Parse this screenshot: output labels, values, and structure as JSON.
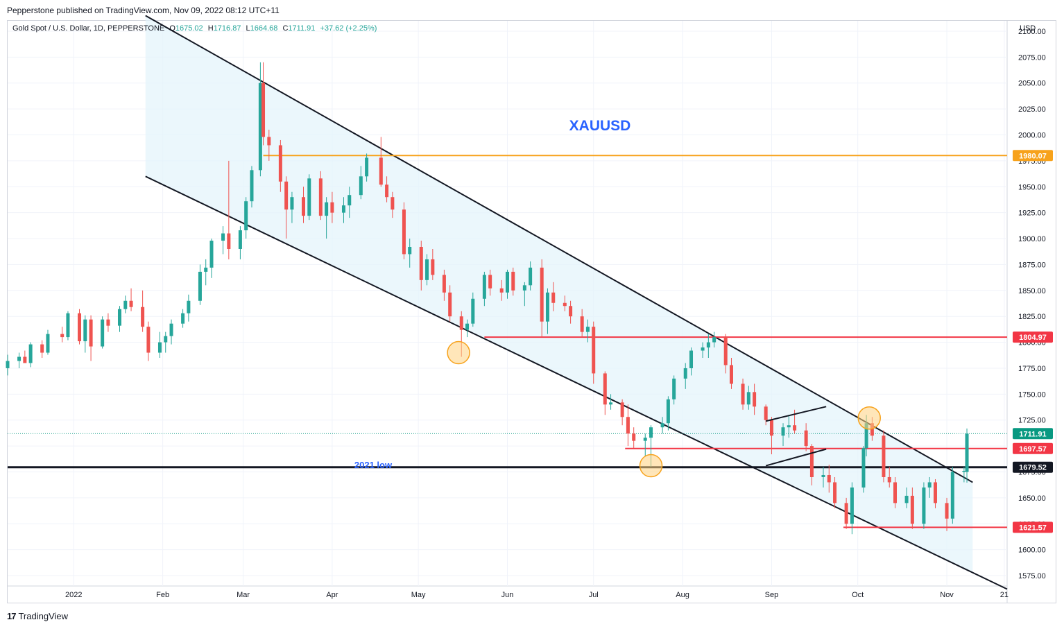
{
  "header": {
    "publisher_note": "Pepperstone published on TradingView.com, Nov 09, 2022 08:12 UTC+11"
  },
  "legend": {
    "symbol": "Gold Spot / U.S. Dollar, 1D, PEPPERSTONE",
    "open_label": "O",
    "open": "1675.02",
    "high_label": "H",
    "high": "1716.87",
    "low_label": "L",
    "low": "1664.68",
    "close_label": "C",
    "close": "1711.91",
    "change": "+37.62 (+2.25%)"
  },
  "currency": "USD",
  "footer": {
    "logo_mark": "17",
    "brand": "TradingView"
  },
  "colors": {
    "up": "#26a69a",
    "down": "#ef5350",
    "channel_fill": "#e3f4fb",
    "resistance_orange": "#f7a21b",
    "title_blue": "#2962ff",
    "badge_red": "#f23645",
    "badge_green": "#089981",
    "badge_black": "#131722"
  },
  "chart_data": {
    "type": "candlestick",
    "title": "XAUUSD",
    "ylim": [
      1565,
      2110
    ],
    "y_ticks": [
      1575,
      1600,
      1625,
      1650,
      1675,
      1700,
      1725,
      1750,
      1775,
      1800,
      1825,
      1850,
      1875,
      1900,
      1925,
      1950,
      1975,
      2000,
      2025,
      2050,
      2075,
      2100
    ],
    "x_range": [
      "2021-12-09",
      "2022-11-22"
    ],
    "x_ticks": [
      {
        "label": "2022",
        "date": "2022-01-01"
      },
      {
        "label": "Feb",
        "date": "2022-02-01"
      },
      {
        "label": "Mar",
        "date": "2022-03-01"
      },
      {
        "label": "Apr",
        "date": "2022-04-01"
      },
      {
        "label": "May",
        "date": "2022-05-01"
      },
      {
        "label": "Jun",
        "date": "2022-06-01"
      },
      {
        "label": "Jul",
        "date": "2022-07-01"
      },
      {
        "label": "Aug",
        "date": "2022-08-01"
      },
      {
        "label": "Sep",
        "date": "2022-09-01"
      },
      {
        "label": "Oct",
        "date": "2022-10-01"
      },
      {
        "label": "Nov",
        "date": "2022-11-01"
      },
      {
        "label": "21",
        "date": "2022-11-21"
      }
    ],
    "candles_approx": [
      [
        "2021-12-09",
        1775,
        1788,
        1768,
        1782
      ],
      [
        "2021-12-13",
        1782,
        1790,
        1775,
        1786
      ],
      [
        "2021-12-15",
        1786,
        1792,
        1780,
        1780
      ],
      [
        "2021-12-17",
        1780,
        1800,
        1776,
        1798
      ],
      [
        "2021-12-21",
        1798,
        1802,
        1785,
        1790
      ],
      [
        "2021-12-23",
        1790,
        1812,
        1788,
        1808
      ],
      [
        "2021-12-28",
        1808,
        1815,
        1800,
        1805
      ],
      [
        "2021-12-30",
        1805,
        1830,
        1802,
        1828
      ],
      [
        "2022-01-03",
        1828,
        1832,
        1798,
        1801
      ],
      [
        "2022-01-05",
        1801,
        1826,
        1790,
        1822
      ],
      [
        "2022-01-07",
        1822,
        1826,
        1782,
        1796
      ],
      [
        "2022-01-11",
        1796,
        1825,
        1794,
        1822
      ],
      [
        "2022-01-13",
        1822,
        1828,
        1810,
        1816
      ],
      [
        "2022-01-17",
        1816,
        1835,
        1810,
        1832
      ],
      [
        "2022-01-19",
        1832,
        1845,
        1828,
        1840
      ],
      [
        "2022-01-21",
        1840,
        1852,
        1830,
        1834
      ],
      [
        "2022-01-25",
        1834,
        1850,
        1810,
        1815
      ],
      [
        "2022-01-27",
        1815,
        1820,
        1782,
        1790
      ],
      [
        "2022-01-31",
        1790,
        1810,
        1785,
        1800
      ],
      [
        "2022-02-02",
        1800,
        1810,
        1790,
        1806
      ],
      [
        "2022-02-04",
        1806,
        1822,
        1798,
        1818
      ],
      [
        "2022-02-08",
        1818,
        1832,
        1814,
        1828
      ],
      [
        "2022-02-10",
        1828,
        1846,
        1820,
        1840
      ],
      [
        "2022-02-14",
        1840,
        1875,
        1836,
        1868
      ],
      [
        "2022-02-16",
        1868,
        1880,
        1855,
        1872
      ],
      [
        "2022-02-18",
        1872,
        1900,
        1862,
        1898
      ],
      [
        "2022-02-22",
        1898,
        1912,
        1885,
        1905
      ],
      [
        "2022-02-24",
        1905,
        1975,
        1880,
        1890
      ],
      [
        "2022-02-28",
        1890,
        1912,
        1880,
        1908
      ],
      [
        "2022-03-02",
        1908,
        1940,
        1900,
        1936
      ],
      [
        "2022-03-04",
        1936,
        1970,
        1930,
        1966
      ],
      [
        "2022-03-07",
        1966,
        2070,
        1960,
        2050
      ],
      [
        "2022-03-08",
        2050,
        2070,
        1990,
        1998
      ],
      [
        "2022-03-10",
        1998,
        2005,
        1975,
        1990
      ],
      [
        "2022-03-14",
        1990,
        1995,
        1945,
        1955
      ],
      [
        "2022-03-16",
        1955,
        1960,
        1900,
        1928
      ],
      [
        "2022-03-18",
        1928,
        1945,
        1915,
        1940
      ],
      [
        "2022-03-22",
        1940,
        1950,
        1915,
        1922
      ],
      [
        "2022-03-24",
        1922,
        1962,
        1918,
        1958
      ],
      [
        "2022-03-28",
        1958,
        1965,
        1918,
        1922
      ],
      [
        "2022-03-30",
        1922,
        1940,
        1900,
        1935
      ],
      [
        "2022-04-01",
        1935,
        1945,
        1915,
        1925
      ],
      [
        "2022-04-05",
        1925,
        1940,
        1915,
        1932
      ],
      [
        "2022-04-07",
        1932,
        1950,
        1920,
        1942
      ],
      [
        "2022-04-11",
        1942,
        1970,
        1938,
        1960
      ],
      [
        "2022-04-13",
        1960,
        1982,
        1955,
        1978
      ],
      [
        "2022-04-18",
        1978,
        1998,
        1950,
        1952
      ],
      [
        "2022-04-20",
        1952,
        1960,
        1935,
        1940
      ],
      [
        "2022-04-22",
        1940,
        1945,
        1920,
        1928
      ],
      [
        "2022-04-26",
        1928,
        1935,
        1880,
        1885
      ],
      [
        "2022-04-28",
        1885,
        1900,
        1872,
        1892
      ],
      [
        "2022-05-02",
        1892,
        1898,
        1850,
        1860
      ],
      [
        "2022-05-04",
        1860,
        1885,
        1855,
        1880
      ],
      [
        "2022-05-06",
        1880,
        1890,
        1860,
        1865
      ],
      [
        "2022-05-10",
        1865,
        1870,
        1840,
        1848
      ],
      [
        "2022-05-12",
        1848,
        1855,
        1820,
        1825
      ],
      [
        "2022-05-16",
        1825,
        1830,
        1786,
        1812
      ],
      [
        "2022-05-18",
        1812,
        1822,
        1805,
        1818
      ],
      [
        "2022-05-20",
        1818,
        1848,
        1815,
        1842
      ],
      [
        "2022-05-24",
        1842,
        1868,
        1835,
        1865
      ],
      [
        "2022-05-26",
        1865,
        1870,
        1845,
        1852
      ],
      [
        "2022-05-30",
        1852,
        1860,
        1840,
        1848
      ],
      [
        "2022-06-01",
        1848,
        1870,
        1842,
        1868
      ],
      [
        "2022-06-03",
        1868,
        1872,
        1845,
        1850
      ],
      [
        "2022-06-07",
        1850,
        1858,
        1835,
        1855
      ],
      [
        "2022-06-09",
        1855,
        1878,
        1850,
        1872
      ],
      [
        "2022-06-13",
        1872,
        1880,
        1805,
        1820
      ],
      [
        "2022-06-15",
        1820,
        1852,
        1808,
        1848
      ],
      [
        "2022-06-17",
        1848,
        1858,
        1830,
        1838
      ],
      [
        "2022-06-21",
        1838,
        1845,
        1830,
        1835
      ],
      [
        "2022-06-23",
        1835,
        1840,
        1818,
        1825
      ],
      [
        "2022-06-27",
        1825,
        1832,
        1805,
        1810
      ],
      [
        "2022-06-29",
        1810,
        1822,
        1800,
        1815
      ],
      [
        "2022-07-01",
        1815,
        1820,
        1760,
        1770
      ],
      [
        "2022-07-05",
        1770,
        1772,
        1730,
        1740
      ],
      [
        "2022-07-07",
        1740,
        1750,
        1735,
        1742
      ],
      [
        "2022-07-11",
        1742,
        1745,
        1720,
        1728
      ],
      [
        "2022-07-13",
        1728,
        1740,
        1700,
        1712
      ],
      [
        "2022-07-15",
        1712,
        1718,
        1698,
        1705
      ],
      [
        "2022-07-19",
        1705,
        1712,
        1690,
        1708
      ],
      [
        "2022-07-21",
        1708,
        1720,
        1680,
        1718
      ],
      [
        "2022-07-25",
        1718,
        1728,
        1712,
        1722
      ],
      [
        "2022-07-27",
        1722,
        1748,
        1715,
        1745
      ],
      [
        "2022-07-29",
        1745,
        1768,
        1740,
        1765
      ],
      [
        "2022-08-02",
        1765,
        1780,
        1755,
        1775
      ],
      [
        "2022-08-04",
        1775,
        1795,
        1768,
        1792
      ],
      [
        "2022-08-08",
        1792,
        1800,
        1785,
        1795
      ],
      [
        "2022-08-10",
        1795,
        1808,
        1785,
        1800
      ],
      [
        "2022-08-12",
        1800,
        1810,
        1795,
        1805
      ],
      [
        "2022-08-16",
        1805,
        1808,
        1770,
        1778
      ],
      [
        "2022-08-18",
        1778,
        1785,
        1755,
        1760
      ],
      [
        "2022-08-22",
        1760,
        1765,
        1735,
        1740
      ],
      [
        "2022-08-24",
        1740,
        1758,
        1735,
        1752
      ],
      [
        "2022-08-26",
        1752,
        1760,
        1730,
        1738
      ],
      [
        "2022-08-30",
        1738,
        1740,
        1720,
        1725
      ],
      [
        "2022-09-01",
        1725,
        1728,
        1692,
        1710
      ],
      [
        "2022-09-05",
        1710,
        1722,
        1700,
        1718
      ],
      [
        "2022-09-07",
        1718,
        1730,
        1708,
        1720
      ],
      [
        "2022-09-09",
        1720,
        1735,
        1712,
        1715
      ],
      [
        "2022-09-13",
        1715,
        1722,
        1695,
        1700
      ],
      [
        "2022-09-15",
        1700,
        1702,
        1662,
        1670
      ],
      [
        "2022-09-19",
        1670,
        1680,
        1660,
        1672
      ],
      [
        "2022-09-21",
        1672,
        1682,
        1655,
        1665
      ],
      [
        "2022-09-23",
        1665,
        1670,
        1640,
        1645
      ],
      [
        "2022-09-27",
        1645,
        1650,
        1620,
        1625
      ],
      [
        "2022-09-29",
        1625,
        1665,
        1615,
        1660
      ],
      [
        "2022-10-03",
        1660,
        1700,
        1655,
        1698
      ],
      [
        "2022-10-04",
        1698,
        1730,
        1690,
        1722
      ],
      [
        "2022-10-06",
        1722,
        1728,
        1705,
        1710
      ],
      [
        "2022-10-10",
        1710,
        1715,
        1665,
        1670
      ],
      [
        "2022-10-12",
        1670,
        1680,
        1660,
        1665
      ],
      [
        "2022-10-14",
        1665,
        1670,
        1640,
        1645
      ],
      [
        "2022-10-18",
        1645,
        1660,
        1640,
        1652
      ],
      [
        "2022-10-20",
        1652,
        1660,
        1620,
        1625
      ],
      [
        "2022-10-24",
        1625,
        1665,
        1620,
        1660
      ],
      [
        "2022-10-26",
        1660,
        1670,
        1650,
        1665
      ],
      [
        "2022-10-28",
        1665,
        1668,
        1640,
        1645
      ],
      [
        "2022-11-01",
        1645,
        1650,
        1618,
        1630
      ],
      [
        "2022-11-03",
        1630,
        1680,
        1625,
        1675
      ],
      [
        "2022-11-07",
        1675,
        1680,
        1665,
        1676
      ],
      [
        "2022-11-08",
        1675.02,
        1716.87,
        1664.68,
        1711.91
      ]
    ],
    "price_labels": [
      {
        "label": "1980.07",
        "value": 1980.07,
        "color": "#f7a21b"
      },
      {
        "label": "1804.97",
        "value": 1804.97,
        "color": "#f23645"
      },
      {
        "label": "1711.91",
        "value": 1711.91,
        "color": "#089981"
      },
      {
        "label": "1697.57",
        "value": 1697.57,
        "color": "#f23645"
      },
      {
        "label": "1679.52",
        "value": 1679.52,
        "color": "#131722"
      },
      {
        "label": "1621.57",
        "value": 1621.57,
        "color": "#f23645"
      }
    ],
    "annotations": {
      "title_text": "XAUUSD",
      "low_2021_text": "2021 low"
    },
    "channel": {
      "upper": [
        [
          "2022-01-26",
          2115
        ],
        [
          "2022-11-10",
          1665
        ]
      ],
      "lower": [
        [
          "2022-01-26",
          1960
        ],
        [
          "2022-11-22",
          1562
        ]
      ]
    },
    "horizontal_levels": [
      {
        "value": 1980.07,
        "from": "2022-03-08",
        "to": "2022-11-22",
        "color": "#f7a21b"
      },
      {
        "value": 1804.97,
        "from": "2022-05-24",
        "to": "2022-11-22",
        "color": "#f23645"
      },
      {
        "value": 1697.57,
        "from": "2022-07-12",
        "to": "2022-11-22",
        "color": "#f23645"
      },
      {
        "value": 1679.52,
        "from": "2021-12-09",
        "to": "2022-11-22",
        "color": "#131722"
      },
      {
        "value": 1621.57,
        "from": "2022-09-26",
        "to": "2022-11-22",
        "color": "#f23645"
      }
    ],
    "highlight_circles": [
      {
        "date": "2022-05-15",
        "value": 1790
      },
      {
        "date": "2022-07-21",
        "value": 1681
      },
      {
        "date": "2022-10-05",
        "value": 1727
      }
    ],
    "flag": {
      "upper": [
        [
          "2022-08-30",
          1724
        ],
        [
          "2022-09-20",
          1738
        ]
      ],
      "lower": [
        [
          "2022-08-30",
          1681
        ],
        [
          "2022-09-20",
          1697
        ]
      ]
    }
  }
}
